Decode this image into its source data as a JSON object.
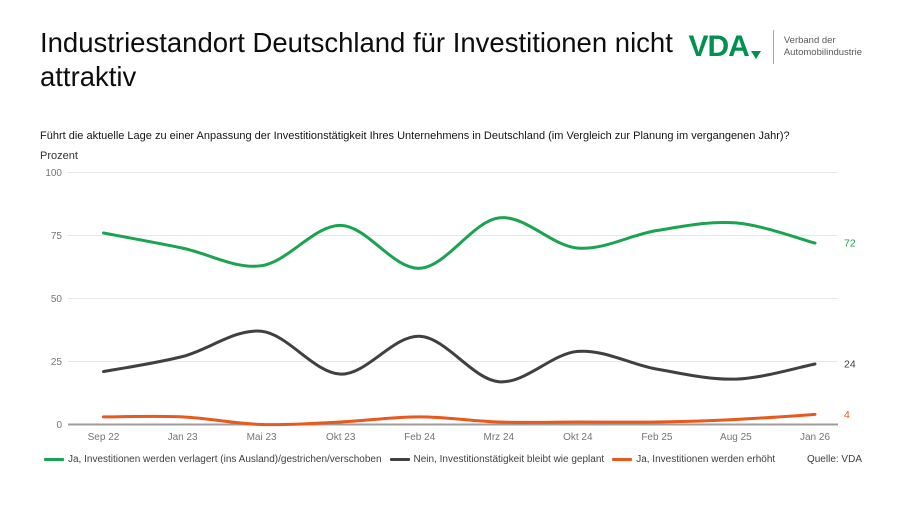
{
  "header": {
    "title": "Industriestandort Deutschland für Investitionen nicht attraktiv",
    "logo": {
      "text": "VDA",
      "tagline_line1": "Verband der",
      "tagline_line2": "Automobilindustrie"
    }
  },
  "question": "Führt die aktuelle Lage zu einer Anpassung der Investitionstätigkeit Ihres Unternehmens in Deutschland (im Vergleich zur Planung im vergangenen Jahr)?",
  "unit_label": "Prozent",
  "source": "Quelle: VDA",
  "colors": {
    "vda_green": "#009150",
    "series_green": "#1aa351",
    "series_dark": "#404040",
    "series_orange": "#e8591d",
    "grid": "#e6e6e6",
    "axis": "#9e9e9e",
    "tick_text": "#757575"
  },
  "chart_data": {
    "type": "line",
    "smooth": true,
    "grid": true,
    "legend_position": "bottom",
    "ylabel": "Prozent",
    "ylim": [
      0,
      100
    ],
    "yticks": [
      0,
      25,
      50,
      75,
      100
    ],
    "categories": [
      "Sep 22",
      "Jan 23",
      "Mai 23",
      "Okt 23",
      "Feb 24",
      "Mrz 24",
      "Okt 24",
      "Feb 25",
      "Aug 25",
      "Jan 26"
    ],
    "series": [
      {
        "name": "Ja, Investitionen werden verlagert (ins Ausland)/gestrichen/verschoben",
        "color": "#1aa351",
        "values": [
          76,
          70,
          63,
          79,
          62,
          82,
          70,
          77,
          80,
          72
        ],
        "end_label": "72"
      },
      {
        "name": "Nein, Investitionstätigkeit bleibt wie geplant",
        "color": "#404040",
        "values": [
          21,
          27,
          37,
          20,
          35,
          17,
          29,
          22,
          18,
          24
        ],
        "end_label": "24"
      },
      {
        "name": "Ja, Investitionen werden erhöht",
        "color": "#e8591d",
        "values": [
          3,
          3,
          0,
          1,
          3,
          1,
          1,
          1,
          2,
          4
        ],
        "end_label": "4"
      }
    ]
  }
}
